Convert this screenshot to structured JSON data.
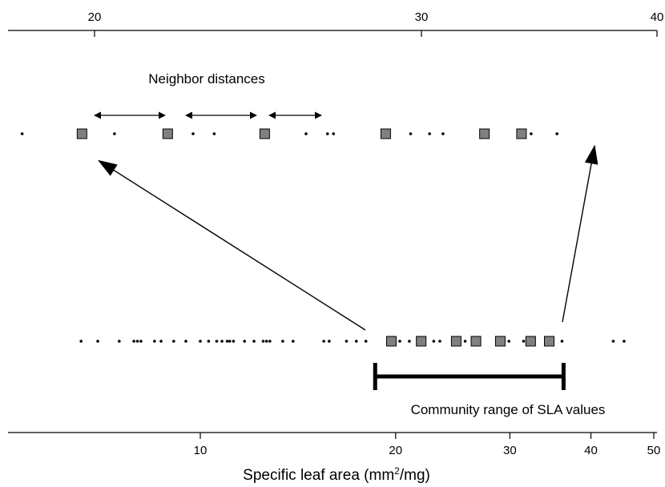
{
  "chart_data": {
    "type": "scatter",
    "xlabel": "Specific leaf area (mm²/mg)",
    "scale": "log",
    "colors": {
      "square_fill": "#808080",
      "ink": "#000000"
    },
    "top_axis": {
      "ticks": [
        20,
        30,
        40
      ],
      "xlim": [
        17.4,
        40.1
      ]
    },
    "bottom_axis": {
      "ticks": [
        10,
        20,
        30,
        40,
        50
      ],
      "xlim": [
        5.8,
        50
      ]
    },
    "top_row": {
      "dots": [
        17.8,
        20.5,
        22.6,
        23.2,
        26.0,
        26.7,
        26.9,
        29.6,
        30.3,
        30.8,
        34.3,
        35.4
      ],
      "squares": [
        19.6,
        21.9,
        24.7,
        28.7,
        32.4,
        33.9
      ]
    },
    "bottom_row": {
      "dots": [
        6.55,
        6.95,
        7.5,
        7.9,
        8.0,
        8.1,
        8.5,
        8.7,
        9.1,
        9.5,
        10.0,
        10.3,
        10.6,
        10.8,
        11.0,
        11.1,
        11.25,
        11.7,
        12.1,
        12.5,
        12.65,
        12.8,
        13.4,
        13.9,
        15.5,
        15.8,
        16.8,
        17.4,
        18.0,
        20.3,
        21.0,
        22.9,
        23.4,
        25.6,
        29.4,
        29.9,
        31.5,
        31.9,
        36.1,
        43.3,
        45.0
      ],
      "squares": [
        19.7,
        21.9,
        24.8,
        26.6,
        29.0,
        32.3,
        34.5
      ],
      "community_range": [
        18.6,
        36.3
      ]
    },
    "annotations": {
      "neighbor_distances": "Neighbor distances",
      "community_range": "Community range of SLA values"
    }
  }
}
